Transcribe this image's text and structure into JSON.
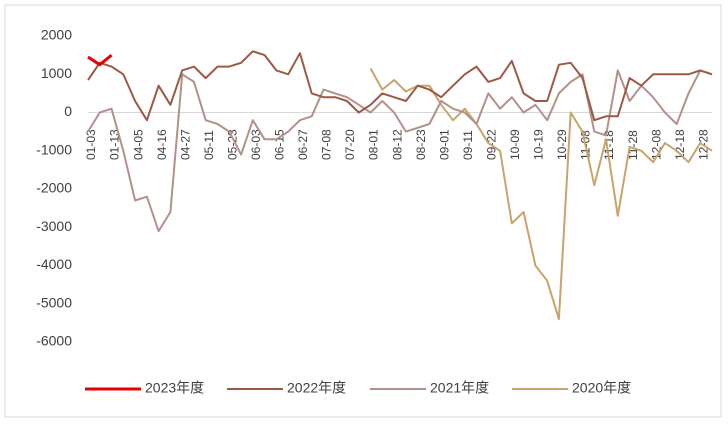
{
  "chart_data": {
    "type": "line",
    "categories": [
      "01-03",
      null,
      "01-13",
      null,
      "04-05",
      null,
      "04-16",
      null,
      "04-27",
      null,
      "05-11",
      null,
      "05-23",
      null,
      "06-03",
      null,
      "06-15",
      null,
      "06-27",
      null,
      "07-08",
      null,
      "07-20",
      null,
      "08-01",
      null,
      "08-12",
      null,
      "08-23",
      null,
      "09-01",
      null,
      "09-11",
      null,
      "09-22",
      null,
      "10-09",
      null,
      "10-19",
      null,
      "10-29",
      null,
      "11-08",
      null,
      "11-18",
      null,
      "11-28",
      null,
      "12-08",
      null,
      "12-18",
      null,
      "12-28",
      null
    ],
    "series": [
      {
        "name": "2023年度",
        "color": "#e60000",
        "values": [
          1450,
          1250,
          1500,
          null,
          null,
          null,
          null,
          null,
          null,
          null,
          null,
          null,
          null,
          null,
          null,
          null,
          null,
          null,
          null,
          null,
          null,
          null,
          null,
          null,
          null,
          null,
          null,
          null,
          null,
          null,
          null,
          null,
          null,
          null,
          null,
          null,
          null,
          null,
          null,
          null,
          null,
          null,
          null,
          null,
          null,
          null,
          null,
          null,
          null,
          null,
          null,
          null,
          null,
          null
        ]
      },
      {
        "name": "2022年度",
        "color": "#9c5a44",
        "values": [
          850,
          1300,
          1200,
          1000,
          300,
          -200,
          700,
          200,
          1100,
          1200,
          900,
          1200,
          1200,
          1300,
          1600,
          1500,
          1100,
          1000,
          1550,
          500,
          400,
          400,
          300,
          0,
          200,
          500,
          400,
          300,
          700,
          600,
          400,
          700,
          1000,
          1200,
          800,
          900,
          1350,
          500,
          300,
          300,
          1250,
          1300,
          900,
          -200,
          -100,
          -100,
          900,
          700,
          1000,
          1000,
          1000,
          1000,
          1100,
          1000
        ]
      },
      {
        "name": "2021年度",
        "color": "#b3918b",
        "values": [
          -500,
          0,
          100,
          -1000,
          -2300,
          -2200,
          -3100,
          -2600,
          1000,
          800,
          -200,
          -300,
          -500,
          -1100,
          -200,
          -700,
          -700,
          -500,
          -200,
          -100,
          600,
          500,
          400,
          200,
          0,
          300,
          0,
          -500,
          -400,
          -300,
          300,
          100,
          0,
          -300,
          500,
          100,
          400,
          0,
          200,
          -200,
          500,
          800,
          1000,
          -500,
          -600,
          1100,
          300,
          700,
          400,
          0,
          -300,
          500,
          1100,
          1000
        ]
      },
      {
        "name": "2020年度",
        "color": "#c8a46c",
        "values": [
          null,
          null,
          null,
          null,
          null,
          null,
          null,
          null,
          null,
          null,
          null,
          null,
          null,
          null,
          null,
          null,
          null,
          null,
          null,
          null,
          null,
          null,
          null,
          null,
          1150,
          600,
          850,
          550,
          700,
          700,
          200,
          -200,
          100,
          -300,
          -800,
          -1000,
          -2900,
          -2600,
          -4000,
          -4400,
          -5400,
          0,
          -500,
          -1900,
          -700,
          -2700,
          -900,
          -1000,
          -1300,
          -800,
          -1000,
          -1300,
          -800,
          -1000
        ]
      }
    ],
    "ylim": [
      -6000,
      2000
    ],
    "yticks": [
      2000,
      1000,
      0,
      -1000,
      -2000,
      -3000,
      -4000,
      -5000,
      -6000
    ],
    "grid": false,
    "legend": "bottom"
  }
}
